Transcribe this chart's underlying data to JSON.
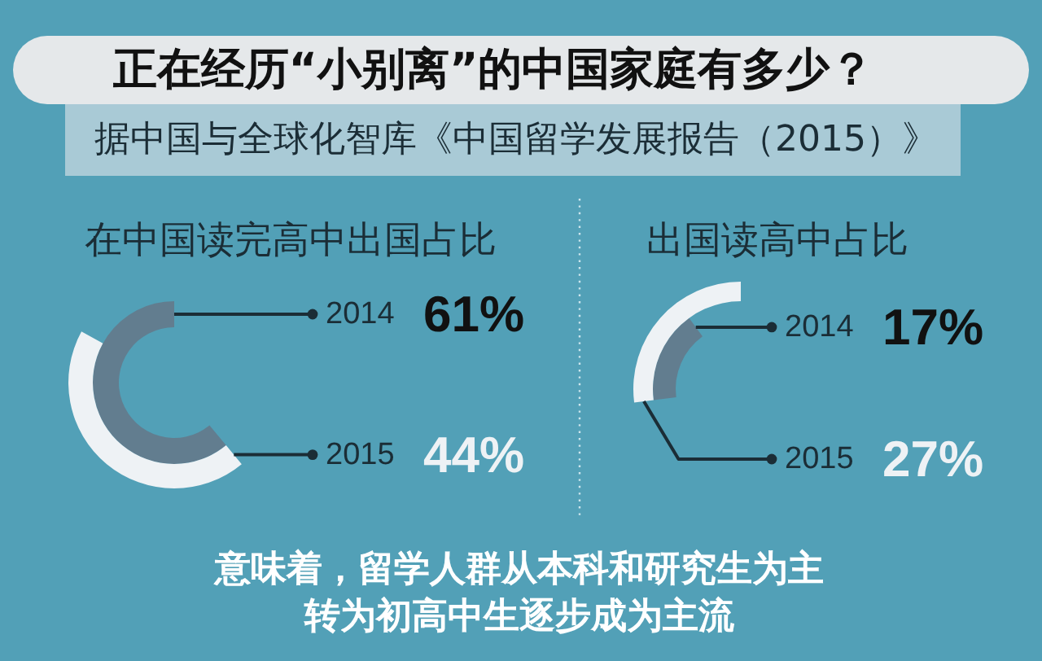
{
  "chart_data": [
    {
      "type": "other",
      "title": "正在经历“小别离”的中国家庭有多少？",
      "subtitle": "据中国与全球化智库《中国留学发展报告（2015）》"
    },
    {
      "type": "other",
      "title": "在中国读完高中出国占比",
      "categories": [
        "2014",
        "2015"
      ],
      "values": [
        61,
        44
      ],
      "colors": [
        "#627d8f",
        "#eef2f5"
      ],
      "value_labels": [
        "61%",
        "44%"
      ]
    },
    {
      "type": "other",
      "title": "出国读高中占比",
      "categories": [
        "2014",
        "2015"
      ],
      "values": [
        17,
        27
      ],
      "colors": [
        "#627d8f",
        "#eef2f5"
      ],
      "value_labels": [
        "17%",
        "27%"
      ]
    },
    {
      "type": "other",
      "annotations": [
        "意味着，留学人群从本科和研究生为主",
        "转为初高中生逐步成为主流"
      ]
    }
  ]
}
